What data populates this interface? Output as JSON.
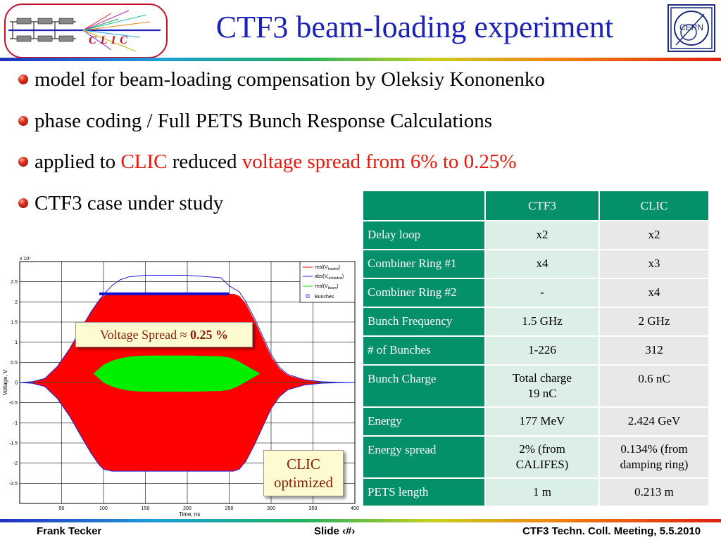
{
  "header": {
    "title": "CTF3 beam-loading experiment",
    "clic_logo_text": "C L I C",
    "cern_logo_text": "CERN"
  },
  "bullets": [
    {
      "parts": [
        {
          "text": "model for beam-loading compensation by Oleksiy Kononenko"
        }
      ]
    },
    {
      "parts": [
        {
          "text": "phase coding / Full PETS Bunch Response Calculations"
        }
      ]
    },
    {
      "parts": [
        {
          "text": "applied to "
        },
        {
          "text": "CLIC",
          "highlight": true
        },
        {
          "text": " reduced "
        },
        {
          "text": "voltage spread from 6% to 0.25%",
          "highlight": true
        }
      ]
    },
    {
      "parts": [
        {
          "text": "CTF3 case under study"
        }
      ]
    }
  ],
  "chart_data": {
    "type": "area",
    "title": "",
    "xlabel": "Time, ns",
    "ylabel": "Voltage, V",
    "y_multiplier": "x 10⁷",
    "xlim": [
      0,
      400
    ],
    "ylim": [
      -3,
      3
    ],
    "xticks": [
      50,
      100,
      150,
      200,
      250,
      300,
      350,
      400
    ],
    "yticks": [
      -2.5,
      -2,
      -1.5,
      -1,
      -0.5,
      0,
      0.5,
      1,
      1.5,
      2,
      2.5
    ],
    "grid": true,
    "legend": {
      "placement": "top-right"
    },
    "series": [
      {
        "name": "real(V_loaded)",
        "color": "#ff0000",
        "envelope_x": [
          0,
          15,
          30,
          45,
          60,
          75,
          85,
          95,
          100,
          110,
          120,
          200,
          250,
          255,
          262,
          270,
          280,
          290,
          300,
          310,
          320,
          340,
          360,
          380,
          400
        ],
        "envelope_y": [
          0,
          0.02,
          0.1,
          0.4,
          0.85,
          1.4,
          1.75,
          2.05,
          2.15,
          2.2,
          2.2,
          2.2,
          2.2,
          2.2,
          2.15,
          1.95,
          1.55,
          1.1,
          0.65,
          0.35,
          0.18,
          0.06,
          0.02,
          0.005,
          0
        ]
      },
      {
        "name": "abs(V_unloaded)",
        "color": "#2020e0",
        "x": [
          0,
          15,
          30,
          45,
          60,
          75,
          85,
          95,
          100,
          110,
          120,
          130,
          150,
          200,
          240,
          250,
          262,
          270,
          280,
          290,
          300,
          310,
          320,
          340,
          360,
          380,
          400
        ],
        "y": [
          0,
          0.02,
          0.1,
          0.4,
          0.85,
          1.4,
          1.75,
          2.05,
          2.18,
          2.4,
          2.55,
          2.62,
          2.66,
          2.66,
          2.6,
          2.4,
          2.25,
          2.0,
          1.6,
          1.15,
          0.7,
          0.38,
          0.2,
          0.07,
          0.02,
          0.005,
          0
        ]
      },
      {
        "name": "real(V_beam)",
        "color": "#00ee00",
        "envelope_x": [
          88,
          100,
          110,
          120,
          130,
          140,
          160,
          200,
          240,
          250,
          260,
          270,
          287
        ],
        "envelope_y": [
          0,
          0.22,
          0.32,
          0.38,
          0.42,
          0.44,
          0.45,
          0.45,
          0.43,
          0.4,
          0.32,
          0.2,
          0
        ],
        "center_y": 0.22
      },
      {
        "name": "Bunches",
        "color": "#1010d0",
        "x": [
          95,
          250
        ],
        "y": [
          2.2,
          2.2
        ]
      }
    ]
  },
  "callouts": {
    "spread_text": "Voltage Spread ≈ ",
    "spread_value": "0.25 %",
    "clic_line1": "CLIC",
    "clic_line2": "optimized"
  },
  "table": {
    "headers": [
      "",
      "CTF3",
      "CLIC"
    ],
    "rows": [
      [
        "Delay loop",
        "x2",
        "x2"
      ],
      [
        "Combiner Ring #1",
        "x4",
        "x3"
      ],
      [
        "Combiner Ring #2",
        "-",
        "x4"
      ],
      [
        "Bunch Frequency",
        "1.5 GHz",
        "2 GHz"
      ],
      [
        "# of Bunches",
        "1-226",
        "312"
      ],
      [
        "Bunch Charge",
        "Total charge\n19 nC",
        "0.6 nC"
      ],
      [
        "Energy",
        "177 MeV",
        "2.424 GeV"
      ],
      [
        "Energy spread",
        "2% (from\nCALIFES)",
        "0.134% (from\ndamping ring)"
      ],
      [
        "PETS length",
        "1 m",
        "0.213 m"
      ]
    ]
  },
  "footer": {
    "author": "Frank Tecker",
    "slide": "Slide ‹#›",
    "meeting": "CTF3 Techn. Coll. Meeting, 5.5.2010"
  },
  "colors": {
    "title": "#1a22b8",
    "highlight": "#e8160c",
    "table_header": "#05906c",
    "table_ctf3": "#dbefe7",
    "table_clic": "#e8e8e8",
    "callout_bg": "#fffbd0",
    "callout_text": "#8a1d05"
  }
}
